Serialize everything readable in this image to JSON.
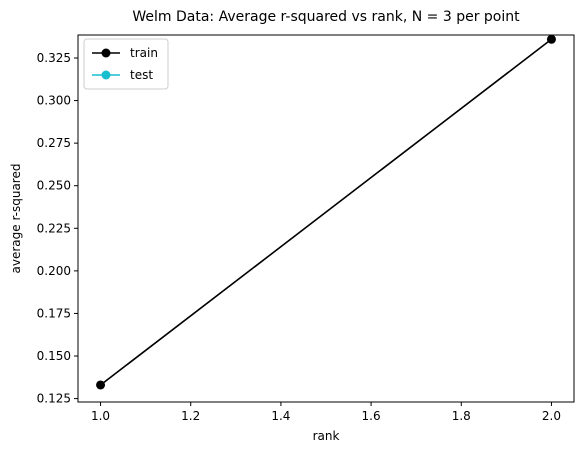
{
  "chart_data": {
    "type": "line",
    "title": "Welm Data: Average r-squared vs rank, N = 3 per point",
    "xlabel": "rank",
    "ylabel": "average r-squared",
    "xlim": [
      0.95,
      2.05
    ],
    "ylim": [
      0.123,
      0.3385
    ],
    "xticks": [
      1.0,
      1.2,
      1.4,
      1.6,
      1.8,
      2.0
    ],
    "xtick_labels": [
      "1.0",
      "1.2",
      "1.4",
      "1.6",
      "1.8",
      "2.0"
    ],
    "yticks": [
      0.125,
      0.15,
      0.175,
      0.2,
      0.225,
      0.25,
      0.275,
      0.3,
      0.325
    ],
    "ytick_labels": [
      "0.125",
      "0.150",
      "0.175",
      "0.200",
      "0.225",
      "0.250",
      "0.275",
      "0.300",
      "0.325"
    ],
    "grid": false,
    "legend_position": "top-left",
    "series": [
      {
        "name": "train",
        "color": "#000000",
        "marker": "circle",
        "x": [
          1.0,
          2.0
        ],
        "y": [
          0.133,
          0.336
        ]
      },
      {
        "name": "test",
        "color": "#17becf",
        "marker": "circle",
        "x": [],
        "y": []
      }
    ]
  }
}
